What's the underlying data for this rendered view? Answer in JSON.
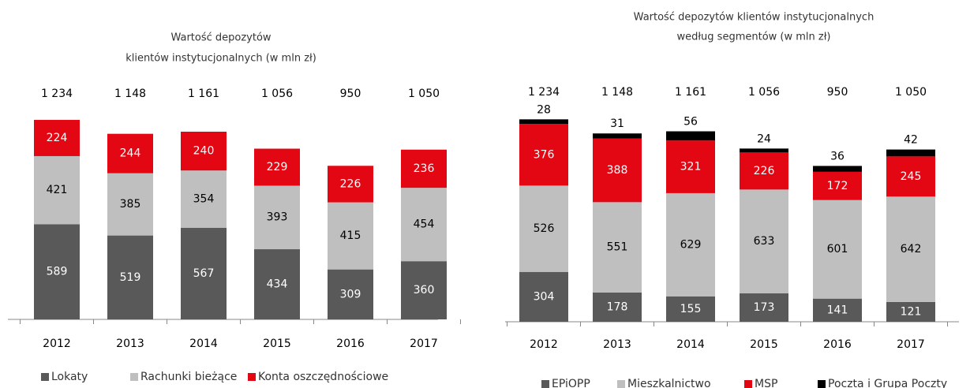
{
  "chart_data": [
    {
      "type": "stacked_bar",
      "title": [
        "Wartość depozytów",
        "klientów instytucjonalnych (w mln zł)"
      ],
      "categories": [
        "2012",
        "2013",
        "2014",
        "2015",
        "2016",
        "2017"
      ],
      "totals": [
        1234,
        1148,
        1161,
        1056,
        950,
        1050
      ],
      "total_labels": [
        "1 234",
        "1 148",
        "1 161",
        "1 056",
        "950",
        "1 050"
      ],
      "series": [
        {
          "name": "Lokaty",
          "color": "#595959",
          "values": [
            589,
            519,
            567,
            434,
            309,
            360
          ]
        },
        {
          "name": "Rachunki bieżące",
          "color": "#bfbfbf",
          "values": [
            421,
            385,
            354,
            393,
            415,
            454
          ]
        },
        {
          "name": "Konta oszczędnościowe",
          "color": "#e30613",
          "values": [
            224,
            244,
            240,
            229,
            226,
            236
          ]
        }
      ]
    },
    {
      "type": "stacked_bar",
      "title": [
        "Wartość depozytów klientów instytucjonalnych",
        "według segmentów (w mln zł)"
      ],
      "categories": [
        "2012",
        "2013",
        "2014",
        "2015",
        "2016",
        "2017"
      ],
      "totals": [
        1234,
        1148,
        1161,
        1056,
        950,
        1050
      ],
      "total_labels": [
        "1 234",
        "1 148",
        "1 161",
        "1 056",
        "950",
        "1 050"
      ],
      "series": [
        {
          "name": "EPiOPP",
          "color": "#595959",
          "values": [
            304,
            178,
            155,
            173,
            141,
            121
          ]
        },
        {
          "name": "Mieszkalnictwo",
          "color": "#bfbfbf",
          "values": [
            526,
            551,
            629,
            633,
            601,
            642
          ]
        },
        {
          "name": "MSP",
          "color": "#e30613",
          "values": [
            376,
            388,
            321,
            226,
            172,
            245
          ]
        },
        {
          "name": "Poczta i Grupa Poczty",
          "color": "#000000",
          "values": [
            28,
            31,
            56,
            24,
            36,
            42
          ]
        }
      ]
    }
  ]
}
